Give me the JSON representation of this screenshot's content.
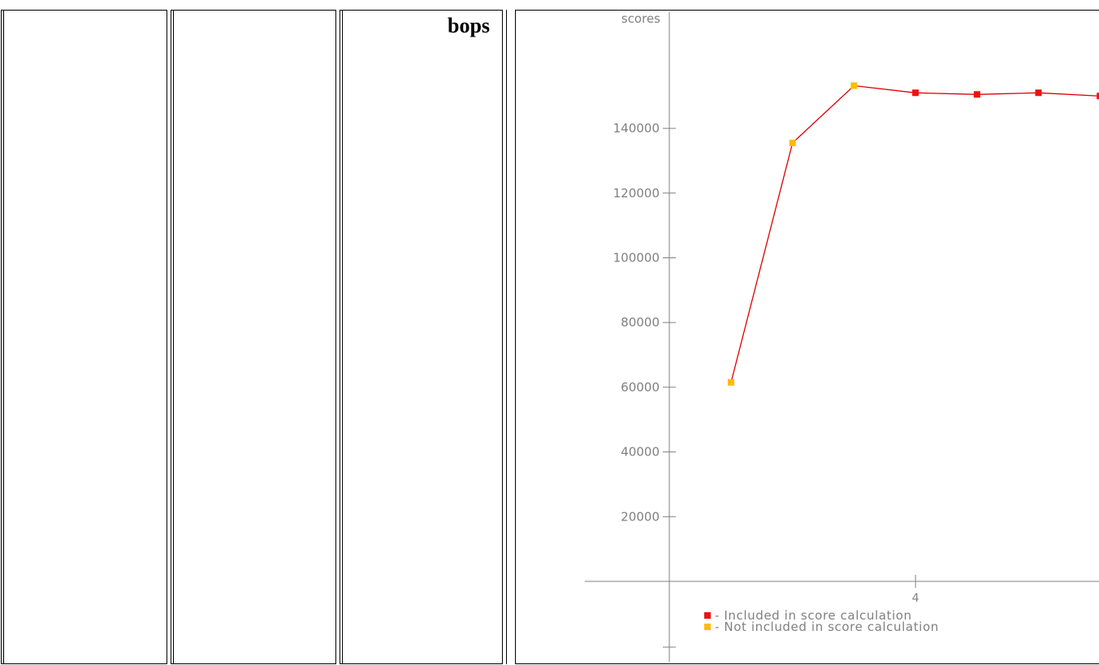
{
  "table": {
    "benchmark_label": "bops"
  },
  "chart_data": {
    "type": "line",
    "ylabel": "scores",
    "y_ticks": [
      20000,
      40000,
      60000,
      80000,
      100000,
      120000,
      140000
    ],
    "x_ticks": [
      4
    ],
    "ylim": [
      0,
      170000
    ],
    "series": [
      {
        "name": "scores",
        "color": "#dd0000",
        "points": [
          {
            "x": 1,
            "y": 61500,
            "included": false
          },
          {
            "x": 2,
            "y": 135500,
            "included": false
          },
          {
            "x": 3,
            "y": 153200,
            "included": false
          },
          {
            "x": 4,
            "y": 151000,
            "included": true
          },
          {
            "x": 5,
            "y": 150500,
            "included": true
          },
          {
            "x": 6,
            "y": 151000,
            "included": true
          },
          {
            "x": 7,
            "y": 150000,
            "included": true
          }
        ]
      }
    ],
    "legend": [
      {
        "label": "- Included in score calculation",
        "color": "#ee1111"
      },
      {
        "label": "- Not included in score calculation",
        "color": "#ffbb00"
      }
    ]
  }
}
